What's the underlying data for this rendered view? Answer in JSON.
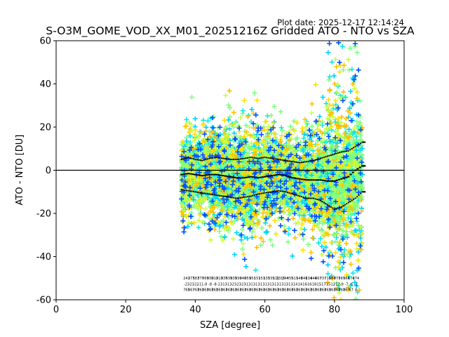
{
  "chart_data": {
    "type": "scatter",
    "title": "S-O3M_GOME_VOD_XX_M01_20251216Z Gridded ATO - NTO vs SZA",
    "plot_date": "Plot date: 2025-12-17 12:14:24",
    "xlabel": "SZA [degree]",
    "ylabel": "ATO - NTO [DU]",
    "xlim": [
      0,
      100
    ],
    "ylim": [
      -60,
      60
    ],
    "xticks": [
      0,
      20,
      40,
      60,
      80,
      100
    ],
    "yticks": [
      -60,
      -40,
      -20,
      0,
      20,
      40,
      60
    ],
    "reference_line_y": 0,
    "scatter_colors": [
      "#7fff7f",
      "#11e8e8",
      "#00d0ff",
      "#ffe000",
      "#ffc000",
      "#c8ff40",
      "#0050ff"
    ],
    "series": [
      {
        "name": "mean",
        "style": "dashed-black",
        "x": [
          36,
          38,
          40,
          42,
          44,
          46,
          48,
          50,
          52,
          54,
          56,
          58,
          60,
          62,
          64,
          66,
          68,
          70,
          72,
          74,
          76,
          78,
          80,
          82,
          84,
          86,
          88
        ],
        "values": [
          -2,
          -1.5,
          -2,
          -2.5,
          -2,
          -2,
          -2.5,
          -3,
          -3.5,
          -3.5,
          -3,
          -3.5,
          -3,
          -2.5,
          -2,
          -2.5,
          -3.5,
          -4,
          -4.5,
          -4.5,
          -4.5,
          -5,
          -5,
          -4,
          -3,
          0,
          2
        ]
      },
      {
        "name": "upper",
        "style": "dotted-black",
        "x": [
          36,
          38,
          40,
          42,
          44,
          46,
          48,
          50,
          52,
          54,
          56,
          58,
          60,
          62,
          64,
          66,
          68,
          70,
          72,
          74,
          76,
          78,
          80,
          82,
          84,
          86,
          88
        ],
        "values": [
          5,
          6,
          5,
          4.5,
          5.5,
          6,
          5.5,
          5,
          5,
          5.5,
          6,
          5.5,
          6,
          5.5,
          5,
          4.5,
          4,
          3.5,
          4,
          4.5,
          5.5,
          6.5,
          7.5,
          8.5,
          9,
          11,
          13
        ]
      },
      {
        "name": "lower",
        "style": "dotted-black",
        "x": [
          36,
          38,
          40,
          42,
          44,
          46,
          48,
          50,
          52,
          54,
          56,
          58,
          60,
          62,
          64,
          66,
          68,
          70,
          72,
          74,
          76,
          78,
          80,
          82,
          84,
          86,
          88
        ],
        "values": [
          -9,
          -9.5,
          -10,
          -10.5,
          -11,
          -11.5,
          -12,
          -12.5,
          -13,
          -12.5,
          -12,
          -11,
          -10.5,
          -10,
          -9.5,
          -10,
          -11,
          -12,
          -13,
          -13,
          -14,
          -16,
          -18,
          -17,
          -15,
          -13,
          -10
        ]
      }
    ],
    "annotation_rows_y": [
      -50.5,
      -53.3,
      -56.0
    ],
    "annotation_rows": [
      [
        "242",
        "373",
        "583",
        "775",
        "769",
        "930",
        "912",
        "912",
        "935",
        "935",
        "939",
        "930",
        "940",
        "951",
        "951",
        "151",
        "153",
        "133",
        "535",
        "111",
        "1315",
        "144",
        "455",
        "511",
        "548",
        "641",
        "634",
        "644",
        "667",
        "737",
        "715",
        "687",
        "877",
        "567",
        "564",
        "574",
        "274"
      ],
      [
        "-23",
        "-23",
        "-22",
        "-11",
        "-8",
        "-8",
        "-8",
        "-13",
        "-13",
        "-13",
        "-23",
        "-23",
        "-23",
        "-13",
        "-13",
        "-13",
        "-13",
        "-13",
        "-13",
        "-13",
        "-13",
        "-13",
        "-13",
        "-14",
        "-14",
        "-16",
        "-16",
        "-18",
        "-15",
        "-17",
        "-15",
        "-12",
        "-12",
        "-9",
        "-7",
        "-6",
        "-2"
      ],
      [
        "767",
        "667",
        "767",
        "867",
        "867",
        "867",
        "867",
        "867",
        "867",
        "867",
        "867",
        "867",
        "867",
        "867",
        "867",
        "867",
        "867",
        "867",
        "867",
        "867",
        "867",
        "867",
        "867",
        "867",
        "867",
        "867",
        "867",
        "867",
        "867",
        "867",
        "867",
        "867",
        "867",
        "867",
        "867",
        "67",
        "4"
      ]
    ]
  }
}
